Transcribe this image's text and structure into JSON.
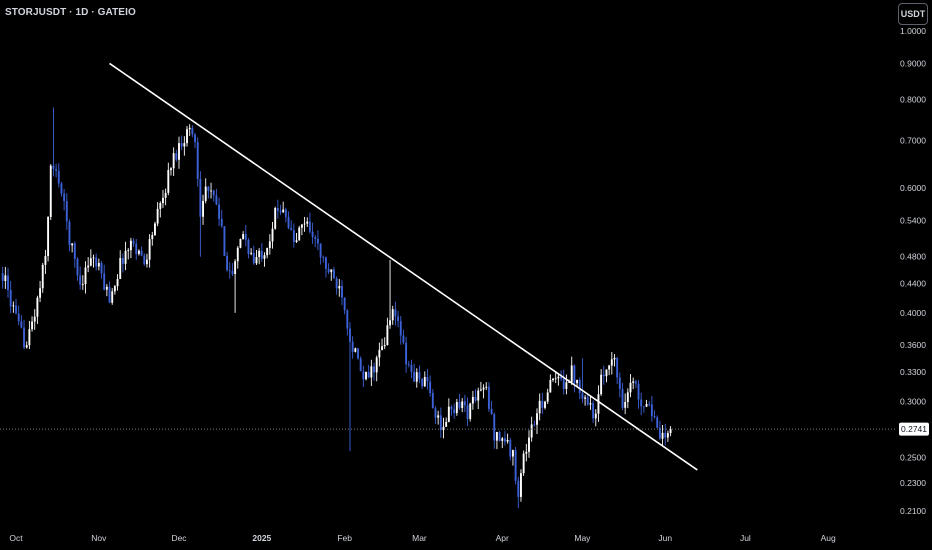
{
  "header": {
    "symbol_title": "STORJUSDT · 1D · GATEIO",
    "currency_label": "USDT"
  },
  "colors": {
    "background": "#000000",
    "bull_candle": "#ffffff",
    "bear_candle": "#3d62d9",
    "trendline": "#ffffff",
    "current_price_line": "#787b86",
    "price_tag_bg": "#ffffff",
    "axis_text": "#d1d4dc"
  },
  "chart_data": {
    "type": "candlestick",
    "title": "STORJUSDT · 1D · GATEIO",
    "y_scale": "log",
    "ylim": [
      0.2,
      1.05
    ],
    "y_ticks": [
      "1.0000",
      "0.9000",
      "0.8000",
      "0.7000",
      "0.6000",
      "0.5400",
      "0.4800",
      "0.4400",
      "0.4000",
      "0.3600",
      "0.3300",
      "0.3000",
      "0.2500",
      "0.2300",
      "0.2100"
    ],
    "x_ticks": [
      {
        "label": "Oct",
        "date": "2024-10-01",
        "bold": false
      },
      {
        "label": "Nov",
        "date": "2024-11-01",
        "bold": false
      },
      {
        "label": "Dec",
        "date": "2024-12-01",
        "bold": false
      },
      {
        "label": "2025",
        "date": "2025-01-01",
        "bold": true
      },
      {
        "label": "Feb",
        "date": "2025-02-01",
        "bold": false
      },
      {
        "label": "Mar",
        "date": "2025-03-01",
        "bold": false
      },
      {
        "label": "Apr",
        "date": "2025-04-01",
        "bold": false
      },
      {
        "label": "May",
        "date": "2025-05-01",
        "bold": false
      },
      {
        "label": "Jun",
        "date": "2025-06-01",
        "bold": false
      },
      {
        "label": "Jul",
        "date": "2025-07-01",
        "bold": false
      },
      {
        "label": "Aug",
        "date": "2025-08-01",
        "bold": false
      }
    ],
    "x_range": [
      "2024-09-25",
      "2025-08-26"
    ],
    "current_price": 0.2741,
    "current_price_label": "0.2741",
    "trendline": {
      "start": [
        "2024-11-05",
        0.9
      ],
      "end": [
        "2025-06-13",
        0.24
      ]
    },
    "anchors": [
      [
        "2024-09-26",
        0.455
      ],
      [
        "2024-10-02",
        0.38
      ],
      [
        "2024-10-05",
        0.36
      ],
      [
        "2024-10-09",
        0.415
      ],
      [
        "2024-10-12",
        0.48
      ],
      [
        "2024-10-14",
        0.64
      ],
      [
        "2024-10-17",
        0.62
      ],
      [
        "2024-10-21",
        0.51
      ],
      [
        "2024-10-25",
        0.44
      ],
      [
        "2024-10-29",
        0.48
      ],
      [
        "2024-11-01",
        0.46
      ],
      [
        "2024-11-05",
        0.42
      ],
      [
        "2024-11-10",
        0.48
      ],
      [
        "2024-11-14",
        0.505
      ],
      [
        "2024-11-18",
        0.47
      ],
      [
        "2024-11-21",
        0.52
      ],
      [
        "2024-11-25",
        0.58
      ],
      [
        "2024-11-28",
        0.65
      ],
      [
        "2024-12-02",
        0.7
      ],
      [
        "2024-12-05",
        0.73
      ],
      [
        "2024-12-07",
        0.7
      ],
      [
        "2024-12-09",
        0.56
      ],
      [
        "2024-12-11",
        0.6
      ],
      [
        "2024-12-15",
        0.57
      ],
      [
        "2024-12-19",
        0.47
      ],
      [
        "2024-12-21",
        0.45
      ],
      [
        "2024-12-25",
        0.52
      ],
      [
        "2024-12-29",
        0.47
      ],
      [
        "2025-01-03",
        0.5
      ],
      [
        "2025-01-06",
        0.55
      ],
      [
        "2025-01-09",
        0.57
      ],
      [
        "2025-01-13",
        0.5
      ],
      [
        "2025-01-17",
        0.54
      ],
      [
        "2025-01-20",
        0.52
      ],
      [
        "2025-01-23",
        0.48
      ],
      [
        "2025-01-27",
        0.45
      ],
      [
        "2025-01-31",
        0.43
      ],
      [
        "2025-02-03",
        0.37
      ],
      [
        "2025-02-05",
        0.35
      ],
      [
        "2025-02-08",
        0.32
      ],
      [
        "2025-02-11",
        0.33
      ],
      [
        "2025-02-14",
        0.35
      ],
      [
        "2025-02-16",
        0.36
      ],
      [
        "2025-02-18",
        0.4
      ],
      [
        "2025-02-21",
        0.39
      ],
      [
        "2025-02-24",
        0.34
      ],
      [
        "2025-02-27",
        0.325
      ],
      [
        "2025-03-03",
        0.32
      ],
      [
        "2025-03-06",
        0.3
      ],
      [
        "2025-03-09",
        0.27
      ],
      [
        "2025-03-12",
        0.29
      ],
      [
        "2025-03-16",
        0.3
      ],
      [
        "2025-03-19",
        0.29
      ],
      [
        "2025-03-23",
        0.31
      ],
      [
        "2025-03-26",
        0.31
      ],
      [
        "2025-03-29",
        0.27
      ],
      [
        "2025-04-02",
        0.265
      ],
      [
        "2025-04-05",
        0.25
      ],
      [
        "2025-04-07",
        0.225
      ],
      [
        "2025-04-09",
        0.25
      ],
      [
        "2025-04-12",
        0.275
      ],
      [
        "2025-04-16",
        0.3
      ],
      [
        "2025-04-20",
        0.32
      ],
      [
        "2025-04-24",
        0.32
      ],
      [
        "2025-04-27",
        0.33
      ],
      [
        "2025-04-30",
        0.315
      ],
      [
        "2025-05-03",
        0.3
      ],
      [
        "2025-05-06",
        0.285
      ],
      [
        "2025-05-08",
        0.32
      ],
      [
        "2025-05-11",
        0.345
      ],
      [
        "2025-05-13",
        0.34
      ],
      [
        "2025-05-16",
        0.3
      ],
      [
        "2025-05-20",
        0.32
      ],
      [
        "2025-05-23",
        0.3
      ],
      [
        "2025-05-26",
        0.3
      ],
      [
        "2025-05-29",
        0.27
      ],
      [
        "2025-06-01",
        0.262
      ],
      [
        "2025-06-03",
        0.274
      ]
    ]
  }
}
